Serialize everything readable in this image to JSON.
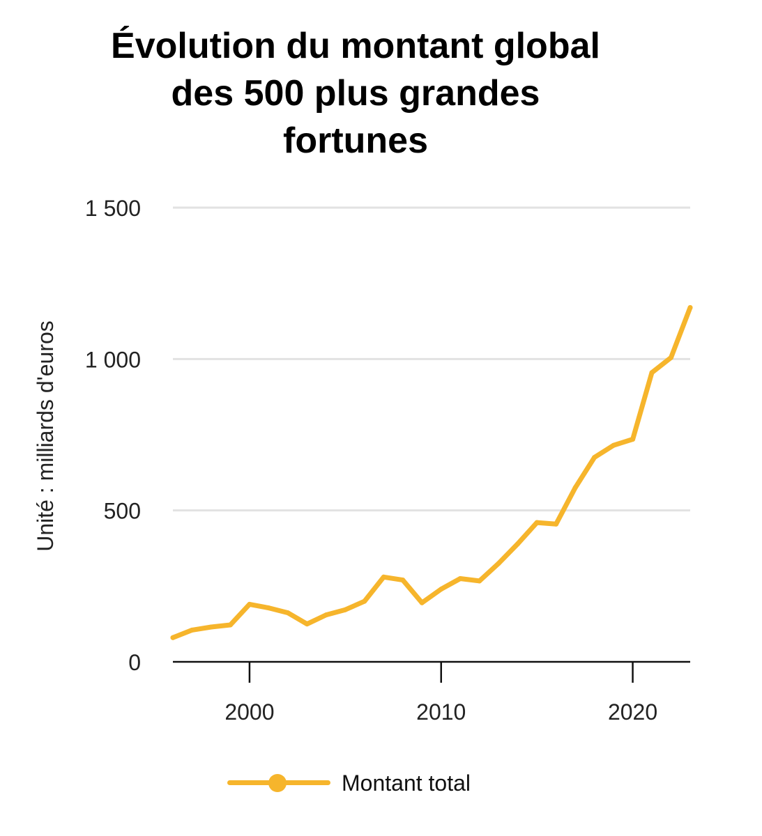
{
  "chart_data": {
    "type": "line",
    "title": "Évolution du montant global des 500 plus grandes fortunes",
    "title_lines": [
      "Évolution du montant global",
      "des 500 plus grandes",
      "fortunes"
    ],
    "ylabel": "Unité : milliards d'euros",
    "xlabel": "",
    "xlim": [
      1996,
      2023
    ],
    "ylim": [
      0,
      1500
    ],
    "x_ticks": [
      {
        "value": 2000,
        "label": "2000"
      },
      {
        "value": 2010,
        "label": "2010"
      },
      {
        "value": 2020,
        "label": "2020"
      }
    ],
    "y_ticks": [
      {
        "value": 0,
        "label": "0"
      },
      {
        "value": 500,
        "label": "500"
      },
      {
        "value": 1000,
        "label": "1 000"
      },
      {
        "value": 1500,
        "label": "1 500"
      }
    ],
    "grid": true,
    "legend_position": "bottom",
    "series": [
      {
        "name": "Montant total",
        "color": "#f6b52c",
        "x": [
          1996,
          1997,
          1998,
          1999,
          2000,
          2001,
          2002,
          2003,
          2004,
          2005,
          2006,
          2007,
          2008,
          2009,
          2010,
          2011,
          2012,
          2013,
          2014,
          2015,
          2016,
          2017,
          2018,
          2019,
          2020,
          2021,
          2022,
          2023
        ],
        "y": [
          80,
          105,
          115,
          122,
          190,
          178,
          162,
          125,
          155,
          172,
          200,
          280,
          270,
          195,
          240,
          275,
          267,
          325,
          390,
          460,
          455,
          575,
          675,
          715,
          735,
          955,
          1005,
          1170
        ]
      }
    ]
  }
}
